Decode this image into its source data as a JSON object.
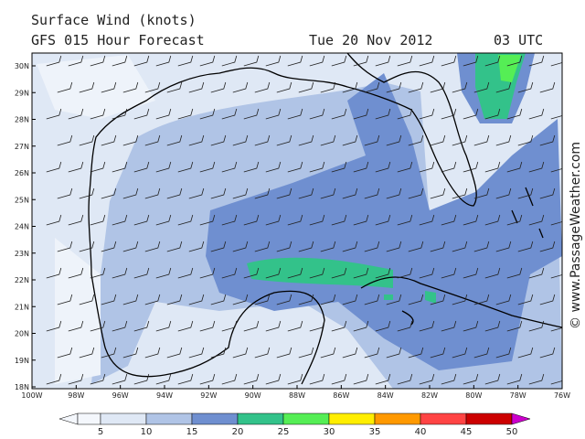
{
  "header": {
    "title": "Surface Wind (knots)",
    "forecast": "GFS 015 Hour Forecast",
    "date": "Tue 20 Nov 2012",
    "time": "03 UTC"
  },
  "credit": "© www.PassageWeather.com",
  "map": {
    "latitudes": [
      "30N",
      "29N",
      "28N",
      "27N",
      "26N",
      "25N",
      "24N",
      "23N",
      "22N",
      "21N",
      "20N",
      "19N",
      "18N"
    ],
    "longitudes": [
      "100W",
      "98W",
      "96W",
      "94W",
      "92W",
      "90W",
      "88W",
      "86W",
      "84W",
      "82W",
      "80W",
      "78W",
      "76W"
    ]
  },
  "legend": {
    "ticks": [
      5,
      10,
      15,
      20,
      25,
      30,
      35,
      40,
      45,
      50
    ]
  }
}
